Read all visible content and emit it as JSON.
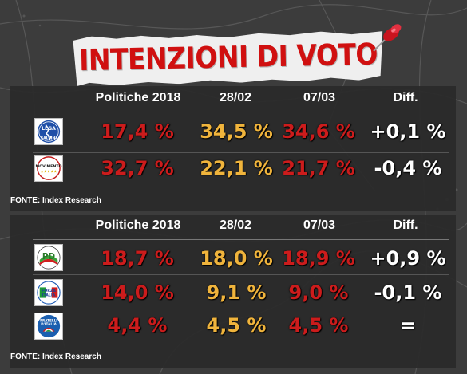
{
  "title": "INTENZIONI DI VOTO",
  "colors": {
    "title": "#d01010",
    "first_column": "#cc1c1c",
    "middle_columns": "#f0b43c",
    "diff": "#ffffff"
  },
  "chart_data": [
    {
      "type": "table",
      "columns": [
        "Politiche 2018",
        "28/02",
        "07/03",
        "Diff."
      ],
      "rows": [
        {
          "party": "Lega",
          "logo_text": [
            "LEGA",
            "SALVINI"
          ],
          "values": [
            "17,4 %",
            "34,5 %",
            "34,6 %",
            "+0,1 %"
          ]
        },
        {
          "party": "Movimento 5 Stelle",
          "logo_text": [
            "MOVIMENTO",
            "★★★★★"
          ],
          "values": [
            "32,7 %",
            "22,1 %",
            "21,7 %",
            "-0,4 %"
          ]
        }
      ],
      "source": "FONTE:  Index Research"
    },
    {
      "type": "table",
      "columns": [
        "Politiche 2018",
        "28/02",
        "07/03",
        "Diff."
      ],
      "rows": [
        {
          "party": "Partito Democratico",
          "logo_text": [
            "PD"
          ],
          "values": [
            "18,7 %",
            "18,0 %",
            "18,9 %",
            "+0,9 %"
          ]
        },
        {
          "party": "Forza Italia",
          "logo_text": [
            "FORZA",
            "ITALIA"
          ],
          "values": [
            "14,0 %",
            "9,1 %",
            "9,0 %",
            "-0,1 %"
          ]
        },
        {
          "party": "Fratelli d'Italia",
          "logo_text": [
            "FRATELLI",
            "D'ITALIA"
          ],
          "values": [
            "4,4 %",
            "4,5 %",
            "4,5 %",
            "="
          ]
        }
      ],
      "source": "FONTE:  Index Research"
    }
  ]
}
